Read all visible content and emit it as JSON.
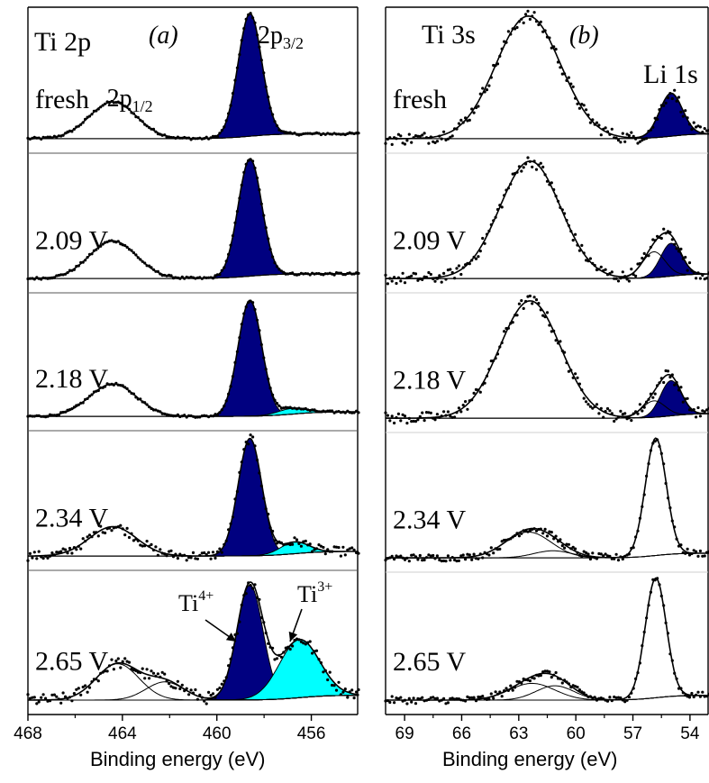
{
  "chart_data": [
    {
      "type": "line",
      "panel_label": "(a)",
      "core_level": "Ti 2p",
      "xlabel": "Binding energy (eV)",
      "xlim": [
        468,
        454
      ],
      "xticks": [
        468,
        464,
        460,
        456
      ],
      "peak_labels": [
        {
          "text": "2p",
          "sub": "3/2",
          "x": 458.5,
          "panel": 0
        },
        {
          "text": "2p",
          "sub": "1/2",
          "x": 464.2,
          "panel": 0
        }
      ],
      "oxidation_labels": [
        {
          "text": "Ti",
          "sup": "4+",
          "x": 458.6
        },
        {
          "text": "Ti",
          "sup": "3+",
          "x": 456.6
        }
      ],
      "series": [
        {
          "name": "fresh",
          "peaks": [
            {
              "center": 464.4,
              "height": 0.3,
              "width": 1.0,
              "fill": "none"
            },
            {
              "center": 458.6,
              "height": 1.0,
              "width": 0.5,
              "fill": "navy"
            }
          ],
          "noise": 0.01
        },
        {
          "name": "2.09 V",
          "peaks": [
            {
              "center": 464.4,
              "height": 0.32,
              "width": 1.0,
              "fill": "none"
            },
            {
              "center": 458.6,
              "height": 1.0,
              "width": 0.5,
              "fill": "navy"
            }
          ],
          "noise": 0.01
        },
        {
          "name": "2.18 V",
          "peaks": [
            {
              "center": 464.4,
              "height": 0.28,
              "width": 1.0,
              "fill": "none"
            },
            {
              "center": 458.6,
              "height": 1.0,
              "width": 0.5,
              "fill": "navy"
            },
            {
              "center": 456.8,
              "height": 0.05,
              "width": 0.6,
              "fill": "cyan"
            }
          ],
          "noise": 0.01
        },
        {
          "name": "2.34 V",
          "peaks": [
            {
              "center": 464.4,
              "height": 0.25,
              "width": 1.0,
              "fill": "none"
            },
            {
              "center": 458.6,
              "height": 1.0,
              "width": 0.5,
              "fill": "navy"
            },
            {
              "center": 456.7,
              "height": 0.1,
              "width": 0.6,
              "fill": "cyan"
            }
          ],
          "noise": 0.04
        },
        {
          "name": "2.65 V",
          "peaks": [
            {
              "center": 464.2,
              "height": 0.3,
              "width": 0.9,
              "fill": "none"
            },
            {
              "center": 462.2,
              "height": 0.15,
              "width": 0.8,
              "fill": "none"
            },
            {
              "center": 458.6,
              "height": 0.95,
              "width": 0.55,
              "fill": "navy"
            },
            {
              "center": 456.5,
              "height": 0.48,
              "width": 0.85,
              "fill": "cyan"
            }
          ],
          "noise": 0.05
        }
      ]
    },
    {
      "type": "line",
      "panel_label": "(b)",
      "core_level": "Ti 3s",
      "second_label": "Li 1s",
      "xlabel": "Binding energy (eV)",
      "xlim": [
        70,
        53
      ],
      "xticks": [
        69,
        66,
        63,
        60,
        57,
        54
      ],
      "series": [
        {
          "name": "fresh",
          "peaks": [
            {
              "center": 62.5,
              "height": 1.0,
              "width": 1.7,
              "fill": "none"
            },
            {
              "center": 55.0,
              "height": 0.35,
              "width": 0.6,
              "fill": "navy"
            }
          ],
          "noise": 0.05
        },
        {
          "name": "2.09 V",
          "peaks": [
            {
              "center": 62.4,
              "height": 1.0,
              "width": 1.6,
              "fill": "none"
            },
            {
              "center": 55.9,
              "height": 0.22,
              "width": 0.6,
              "fill": "none"
            },
            {
              "center": 55.0,
              "height": 0.28,
              "width": 0.55,
              "fill": "navy"
            }
          ],
          "noise": 0.05
        },
        {
          "name": "2.18 V",
          "peaks": [
            {
              "center": 62.4,
              "height": 1.0,
              "width": 1.6,
              "fill": "none"
            },
            {
              "center": 55.9,
              "height": 0.14,
              "width": 0.6,
              "fill": "none"
            },
            {
              "center": 55.0,
              "height": 0.3,
              "width": 0.55,
              "fill": "navy"
            }
          ],
          "noise": 0.05
        },
        {
          "name": "2.34 V",
          "peaks": [
            {
              "center": 62.5,
              "height": 0.22,
              "width": 1.2,
              "fill": "none"
            },
            {
              "center": 61.2,
              "height": 0.06,
              "width": 1.0,
              "fill": "none"
            },
            {
              "center": 55.8,
              "height": 1.0,
              "width": 0.55,
              "fill": "none"
            }
          ],
          "noise": 0.03
        },
        {
          "name": "2.65 V",
          "peaks": [
            {
              "center": 62.3,
              "height": 0.14,
              "width": 1.2,
              "fill": "none"
            },
            {
              "center": 61.1,
              "height": 0.12,
              "width": 1.0,
              "fill": "none"
            },
            {
              "center": 55.8,
              "height": 1.0,
              "width": 0.55,
              "fill": "none"
            }
          ],
          "noise": 0.03
        }
      ]
    }
  ],
  "colors": {
    "navy": "#000080",
    "cyan": "#00FFFF",
    "line": "#000000",
    "points": "#000000",
    "frame": "#000000",
    "divider_a": "#555555",
    "divider_b": "#cfcfcf"
  }
}
